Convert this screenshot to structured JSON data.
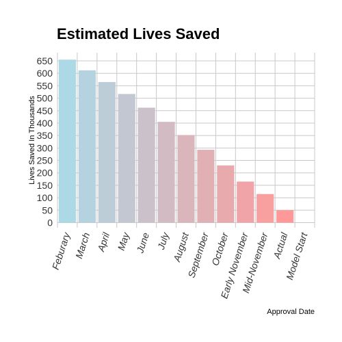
{
  "chart_data": {
    "type": "bar",
    "title": "Estimated Lives Saved",
    "xlabel": "Approval Date",
    "ylabel": "Lives Saved In Thousands",
    "categories": [
      "Feburary",
      "March",
      "April",
      "May",
      "June",
      "July",
      "August",
      "September",
      "October",
      "Early November",
      "Mid-November",
      "Actual",
      "Model Start"
    ],
    "values": [
      655,
      612,
      565,
      517,
      462,
      405,
      352,
      293,
      230,
      165,
      115,
      50,
      0
    ],
    "ylim": [
      0,
      680
    ],
    "yticks": [
      0,
      50,
      100,
      150,
      200,
      250,
      300,
      350,
      400,
      450,
      500,
      550,
      600,
      650
    ],
    "grid": true,
    "legend": "none",
    "colors": {
      "start": "#add8e6",
      "end": "#ff9999"
    }
  }
}
